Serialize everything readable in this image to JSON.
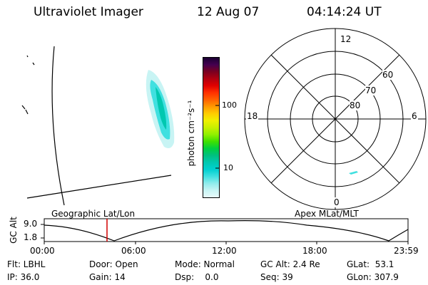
{
  "header": {
    "title": "Ultraviolet Imager",
    "date": "12 Aug 07",
    "time": "04:14:24 UT"
  },
  "geo_panel": {
    "label": "Geographic Lat/Lon"
  },
  "apex_panel": {
    "label": "Apex MLat/MLT",
    "mlt_labels": {
      "top": "12",
      "left": "18",
      "right": "6",
      "bottom": "0"
    },
    "lat_labels": [
      "60",
      "70",
      "80"
    ]
  },
  "colorbar": {
    "unit_label": "photon cm⁻²s⁻¹",
    "ticks": [
      "100",
      "10"
    ],
    "colors": [
      "#1a0033",
      "#44004f",
      "#7a0020",
      "#b00010",
      "#e00000",
      "#ff3000",
      "#ff6000",
      "#ff9900",
      "#ffcc00",
      "#f0f000",
      "#c8f000",
      "#90f000",
      "#40e000",
      "#00d040",
      "#00c080",
      "#00c8b0",
      "#00d0d0",
      "#40e0e0",
      "#90ecec",
      "#c8f4f4",
      "#e8fafa"
    ]
  },
  "altitude_plot": {
    "ylabel": "GC Alt",
    "yticks": [
      "9.0",
      "1.8"
    ],
    "xticks": [
      "00:00",
      "06:00",
      "12:00",
      "18:00",
      "23:59"
    ],
    "current_marker": "04:14"
  },
  "footer": {
    "row1": {
      "flt": "Flt: LBHL",
      "door": "Door: Open",
      "mode": "Mode: Normal",
      "gcalt": "GC Alt: 2.4 Re",
      "glat": "GLat:  53.1"
    },
    "row2": {
      "ip": "IP: 36.0",
      "gain": "Gain: 14",
      "dsp": "Dsp:    0.0",
      "seq": "Seq: 39",
      "glon": "GLon: 307.9"
    }
  }
}
